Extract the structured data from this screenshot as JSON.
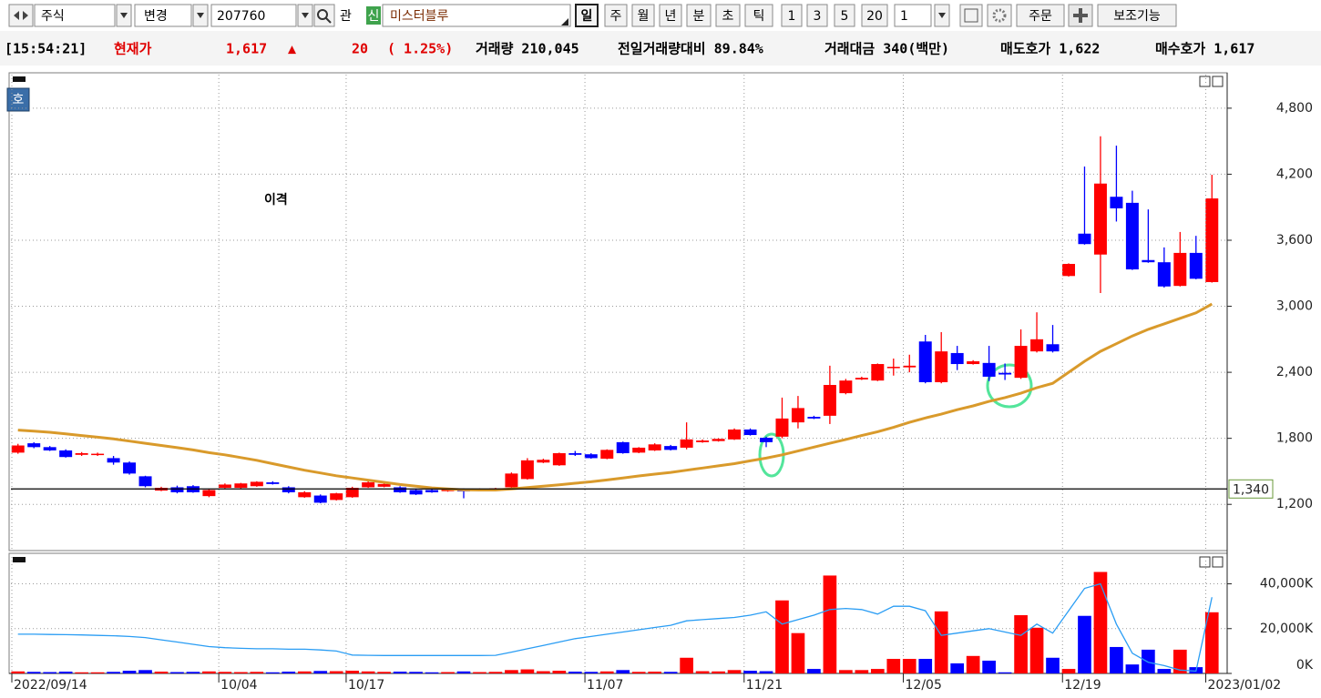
{
  "toolbar": {
    "market": "주식",
    "change": "변경",
    "code": "207760",
    "watch": "관",
    "badge": "신",
    "name": "미스터블루",
    "periods": [
      "일",
      "주",
      "월",
      "년",
      "분",
      "초",
      "틱"
    ],
    "intervals": [
      "1",
      "3",
      "5",
      "20"
    ],
    "count": "1",
    "order": "주문",
    "aux": "보조기능"
  },
  "quote": {
    "time": "[15:54:21]",
    "label": "현재가",
    "price": "1,617",
    "arrow": "▲",
    "change": "20",
    "rate": "( 1.25%)",
    "items": [
      "거래량 210,045",
      "전일거래량대비 89.84%",
      "거래대금 340(백만)",
      "매도호가 1,622",
      "매수호가 1,617"
    ]
  },
  "panel_badge": "호",
  "chart_data": [
    {
      "type": "candlestick",
      "annotation": "이격",
      "up_color": "#ff0000",
      "down_color": "#0000ff",
      "ylim": [
        780,
        5105
      ],
      "yticks": [
        {
          "value": 1200,
          "label": "1,200"
        },
        {
          "value": 1800,
          "label": "1,800"
        },
        {
          "value": 2400,
          "label": "2,400"
        },
        {
          "value": 3000,
          "label": "3,000"
        },
        {
          "value": 3600,
          "label": "3,600"
        },
        {
          "value": 4200,
          "label": "4,200"
        },
        {
          "value": 4800,
          "label": "4,800"
        }
      ],
      "grid": true,
      "price_line": {
        "value": 1340,
        "label": "1,340"
      },
      "open": [
        1670,
        1755,
        1720,
        1690,
        1650,
        1650,
        1620,
        1580,
        1455,
        1325,
        1355,
        1365,
        1275,
        1350,
        1350,
        1365,
        1400,
        1355,
        1265,
        1280,
        1240,
        1265,
        1355,
        1360,
        1355,
        1330,
        1330,
        1320,
        1330,
        1325,
        1330,
        1355,
        1430,
        1580,
        1555,
        1665,
        1655,
        1615,
        1765,
        1670,
        1690,
        1730,
        1715,
        1765,
        1775,
        1790,
        1880,
        1805,
        1815,
        1945,
        1995,
        2005,
        2210,
        2335,
        2325,
        2440,
        2445,
        2680,
        2310,
        2575,
        2475,
        2485,
        2395,
        2350,
        2590,
        2655,
        3275,
        3660,
        3470,
        3995,
        3940,
        3420,
        3400,
        3185,
        3485,
        3220
      ],
      "high": [
        1750,
        1765,
        1730,
        1700,
        1675,
        1670,
        1640,
        1590,
        1460,
        1360,
        1370,
        1375,
        1340,
        1390,
        1395,
        1410,
        1410,
        1365,
        1320,
        1290,
        1305,
        1360,
        1410,
        1395,
        1365,
        1340,
        1340,
        1340,
        1345,
        1345,
        1350,
        1490,
        1620,
        1615,
        1670,
        1685,
        1665,
        1700,
        1770,
        1720,
        1755,
        1740,
        1945,
        1790,
        1800,
        1890,
        1890,
        1815,
        2170,
        2185,
        2005,
        2460,
        2340,
        2360,
        2480,
        2525,
        2560,
        2740,
        2765,
        2640,
        2510,
        2640,
        2480,
        2790,
        2945,
        2830,
        3390,
        4270,
        4545,
        4460,
        4050,
        3880,
        3535,
        3675,
        3640,
        4195
      ],
      "low": [
        1660,
        1710,
        1685,
        1625,
        1640,
        1640,
        1560,
        1470,
        1355,
        1320,
        1300,
        1305,
        1265,
        1345,
        1345,
        1360,
        1380,
        1300,
        1260,
        1210,
        1235,
        1260,
        1350,
        1355,
        1305,
        1285,
        1305,
        1315,
        1255,
        1320,
        1325,
        1350,
        1425,
        1575,
        1550,
        1640,
        1615,
        1610,
        1660,
        1665,
        1685,
        1690,
        1700,
        1760,
        1770,
        1785,
        1825,
        1720,
        1800,
        1890,
        1975,
        1930,
        2200,
        2330,
        2320,
        2370,
        2400,
        2300,
        2300,
        2420,
        2470,
        2320,
        2330,
        2340,
        2580,
        2580,
        3270,
        3560,
        3120,
        3770,
        3330,
        3395,
        3170,
        3180,
        3245,
        3215
      ],
      "close": [
        1735,
        1720,
        1690,
        1630,
        1665,
        1660,
        1580,
        1480,
        1365,
        1350,
        1310,
        1310,
        1330,
        1380,
        1390,
        1405,
        1385,
        1310,
        1310,
        1215,
        1300,
        1350,
        1400,
        1385,
        1310,
        1290,
        1310,
        1335,
        1320,
        1340,
        1345,
        1480,
        1600,
        1605,
        1665,
        1650,
        1620,
        1695,
        1665,
        1715,
        1745,
        1695,
        1790,
        1780,
        1795,
        1880,
        1830,
        1765,
        1980,
        2075,
        1980,
        2285,
        2325,
        2350,
        2475,
        2450,
        2460,
        2310,
        2590,
        2475,
        2500,
        2360,
        2380,
        2640,
        2700,
        2590,
        3385,
        3565,
        4115,
        3890,
        3335,
        3400,
        3180,
        3485,
        3250,
        3980
      ],
      "ma": {
        "color": "#d99a2b",
        "values": [
          1875,
          1865,
          1855,
          1840,
          1825,
          1810,
          1795,
          1775,
          1755,
          1735,
          1715,
          1695,
          1670,
          1650,
          1625,
          1600,
          1570,
          1540,
          1510,
          1485,
          1460,
          1440,
          1420,
          1400,
          1380,
          1365,
          1350,
          1340,
          1332,
          1330,
          1330,
          1340,
          1352,
          1365,
          1378,
          1392,
          1405,
          1422,
          1440,
          1458,
          1475,
          1490,
          1510,
          1530,
          1550,
          1570,
          1595,
          1620,
          1650,
          1685,
          1720,
          1755,
          1790,
          1825,
          1860,
          1900,
          1945,
          1985,
          2020,
          2060,
          2095,
          2135,
          2170,
          2210,
          2260,
          2300,
          2400,
          2500,
          2590,
          2660,
          2730,
          2790,
          2840,
          2890,
          2940,
          3020
        ]
      }
    },
    {
      "type": "bar",
      "ylim": [
        0,
        52000
      ],
      "yticks": [
        {
          "value": 0,
          "label": "0K"
        },
        {
          "value": 20000,
          "label": "20,000K"
        },
        {
          "value": 40000,
          "label": "40,000K"
        }
      ],
      "categories": [
        "2022/09/14",
        null,
        null,
        null,
        null,
        null,
        null,
        null,
        null,
        null,
        null,
        null,
        null,
        "10/04",
        null,
        null,
        null,
        null,
        null,
        null,
        null,
        "10/17",
        null,
        null,
        null,
        null,
        null,
        null,
        null,
        null,
        null,
        null,
        null,
        null,
        null,
        null,
        "11/07",
        null,
        null,
        null,
        null,
        null,
        null,
        null,
        null,
        null,
        "11/21",
        null,
        null,
        null,
        null,
        null,
        null,
        null,
        null,
        null,
        "12/05",
        null,
        null,
        null,
        null,
        null,
        null,
        null,
        null,
        null,
        "12/19",
        null,
        null,
        null,
        null,
        null,
        null,
        null,
        null,
        "2023/01/02"
      ],
      "series": [
        {
          "style": "bar",
          "values": [
            900,
            700,
            600,
            800,
            500,
            500,
            700,
            1200,
            1500,
            800,
            600,
            700,
            900,
            700,
            600,
            700,
            500,
            800,
            900,
            1100,
            1000,
            1200,
            900,
            700,
            800,
            700,
            500,
            600,
            900,
            600,
            700,
            1500,
            1800,
            1000,
            1200,
            800,
            700,
            900,
            1500,
            700,
            800,
            700,
            7000,
            1000,
            900,
            1500,
            1200,
            1000,
            32600,
            18000,
            2000,
            43700,
            1500,
            1500,
            2000,
            6500,
            6500,
            6500,
            27700,
            4500,
            7800,
            5700,
            500,
            26000,
            20400,
            7000,
            2000,
            25700,
            45300,
            11800,
            4000,
            10600,
            2000,
            10600,
            2800,
            27300
          ]
        },
        {
          "style": "line",
          "color": "#2a9df4",
          "values": [
            17500,
            17500,
            17400,
            17300,
            17200,
            17000,
            16800,
            16500,
            16000,
            15000,
            14000,
            13000,
            12000,
            11500,
            11200,
            11000,
            11000,
            10800,
            10800,
            10500,
            10000,
            8200,
            8100,
            8000,
            8000,
            8000,
            8000,
            8000,
            8000,
            8000,
            8100,
            9500,
            11000,
            12500,
            14000,
            15500,
            16500,
            17500,
            18500,
            19500,
            20500,
            21500,
            23500,
            24000,
            24500,
            25000,
            26000,
            27500,
            22000,
            24000,
            26000,
            28500,
            29000,
            28500,
            26500,
            30000,
            30000,
            28000,
            17000,
            18000,
            19000,
            20000,
            18500,
            17000,
            22000,
            18000,
            28000,
            38000,
            40000,
            22000,
            9000,
            5000,
            3500,
            1500,
            1000,
            34000
          ]
        }
      ]
    }
  ]
}
